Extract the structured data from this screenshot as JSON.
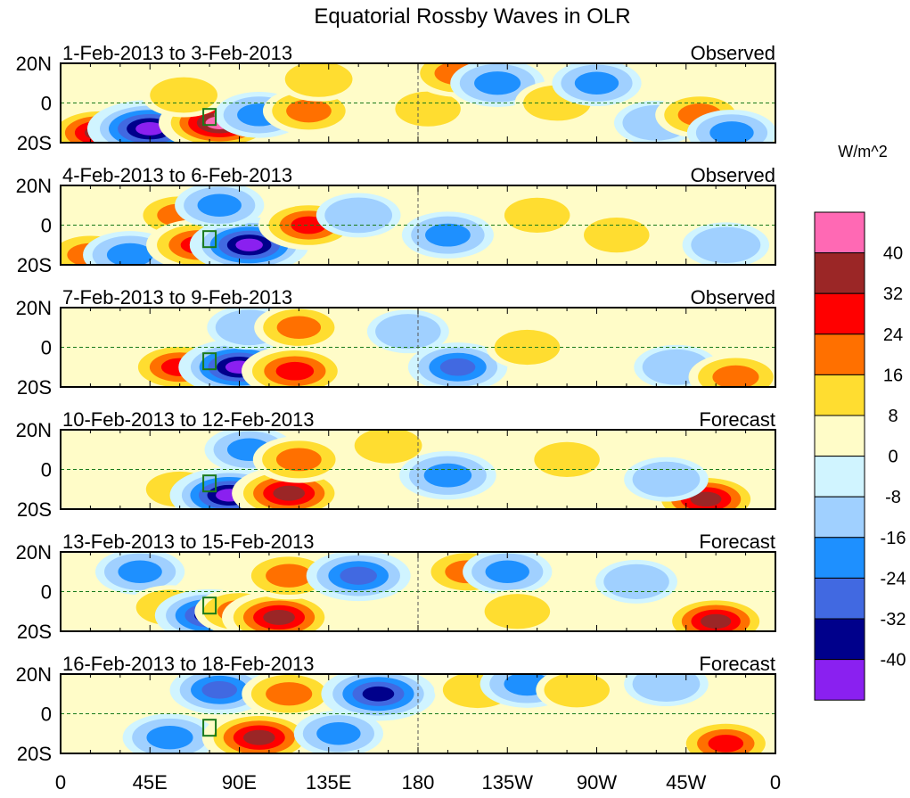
{
  "chart_data": {
    "type": "heatmap",
    "title": "Equatorial Rossby Waves in OLR",
    "units_label": "W/m^2",
    "x_ticks": [
      "0",
      "45E",
      "90E",
      "135E",
      "180",
      "135W",
      "90W",
      "45W",
      "0"
    ],
    "y_ticks": [
      "20N",
      "0",
      "20S"
    ],
    "xlim": [
      0,
      360
    ],
    "ylim": [
      -20,
      20
    ],
    "colorbar": {
      "levels": [
        "40",
        "32",
        "24",
        "16",
        "8",
        "0",
        "-8",
        "-16",
        "-24",
        "-32",
        "-40"
      ],
      "colors": [
        "#ff69b4",
        "#9b2626",
        "#ff0000",
        "#ff7000",
        "#ffdd30",
        "#fffcc8",
        "#d0f4ff",
        "#a0d0ff",
        "#1e90ff",
        "#4169e1",
        "#00008b",
        "#8a20f0"
      ]
    },
    "panels": [
      {
        "date_range": "1-Feb-2013 to 3-Feb-2013",
        "status": "Observed",
        "anomalies": [
          [
            20,
            -15,
            35
          ],
          [
            45,
            -13,
            -45
          ],
          [
            80,
            -10,
            42
          ],
          [
            62,
            4,
            12
          ],
          [
            100,
            -6,
            -16
          ],
          [
            125,
            -4,
            18
          ],
          [
            130,
            12,
            12
          ],
          [
            185,
            -3,
            10
          ],
          [
            200,
            15,
            20
          ],
          [
            220,
            10,
            -20
          ],
          [
            250,
            0,
            12
          ],
          [
            270,
            10,
            -16
          ],
          [
            300,
            -10,
            -12
          ],
          [
            322,
            -6,
            16
          ],
          [
            338,
            -15,
            -16
          ]
        ]
      },
      {
        "date_range": "4-Feb-2013 to 6-Feb-2013",
        "status": "Observed",
        "anomalies": [
          [
            15,
            -15,
            20
          ],
          [
            35,
            -15,
            -20
          ],
          [
            60,
            5,
            18
          ],
          [
            70,
            -10,
            30
          ],
          [
            95,
            -10,
            -40
          ],
          [
            80,
            10,
            -16
          ],
          [
            125,
            0,
            25
          ],
          [
            150,
            5,
            -12
          ],
          [
            195,
            -5,
            -18
          ],
          [
            240,
            5,
            10
          ],
          [
            280,
            -5,
            10
          ],
          [
            335,
            -10,
            -14
          ]
        ]
      },
      {
        "date_range": "7-Feb-2013 to 9-Feb-2013",
        "status": "Observed",
        "anomalies": [
          [
            60,
            -10,
            28
          ],
          [
            90,
            -10,
            -42
          ],
          [
            95,
            10,
            -12
          ],
          [
            118,
            -12,
            30
          ],
          [
            120,
            10,
            16
          ],
          [
            175,
            8,
            -10
          ],
          [
            200,
            -10,
            -24
          ],
          [
            235,
            0,
            10
          ],
          [
            310,
            -10,
            -12
          ],
          [
            340,
            -15,
            20
          ]
        ]
      },
      {
        "date_range": "10-Feb-2013 to 12-Feb-2013",
        "status": "Forecast",
        "anomalies": [
          [
            60,
            -10,
            12
          ],
          [
            85,
            -13,
            -40
          ],
          [
            95,
            10,
            -16
          ],
          [
            115,
            -12,
            36
          ],
          [
            120,
            5,
            18
          ],
          [
            165,
            12,
            12
          ],
          [
            195,
            -3,
            -22
          ],
          [
            255,
            5,
            10
          ],
          [
            325,
            -15,
            34
          ],
          [
            305,
            -5,
            -12
          ]
        ]
      },
      {
        "date_range": "13-Feb-2013 to 15-Feb-2013",
        "status": "Forecast",
        "anomalies": [
          [
            40,
            10,
            -16
          ],
          [
            55,
            -8,
            12
          ],
          [
            75,
            -12,
            -32
          ],
          [
            90,
            -10,
            16
          ],
          [
            110,
            -13,
            36
          ],
          [
            115,
            8,
            20
          ],
          [
            150,
            8,
            -28
          ],
          [
            205,
            10,
            18
          ],
          [
            225,
            10,
            -16
          ],
          [
            230,
            -10,
            10
          ],
          [
            330,
            -15,
            32
          ],
          [
            290,
            5,
            -10
          ]
        ]
      },
      {
        "date_range": "16-Feb-2013 to 18-Feb-2013",
        "status": "Forecast",
        "anomalies": [
          [
            55,
            -12,
            -20
          ],
          [
            100,
            -12,
            36
          ],
          [
            80,
            12,
            -24
          ],
          [
            115,
            10,
            20
          ],
          [
            160,
            10,
            -36
          ],
          [
            210,
            12,
            14
          ],
          [
            235,
            15,
            -20
          ],
          [
            260,
            12,
            10
          ],
          [
            305,
            15,
            -12
          ],
          [
            335,
            -15,
            24
          ],
          [
            140,
            -10,
            -16
          ]
        ]
      }
    ]
  }
}
